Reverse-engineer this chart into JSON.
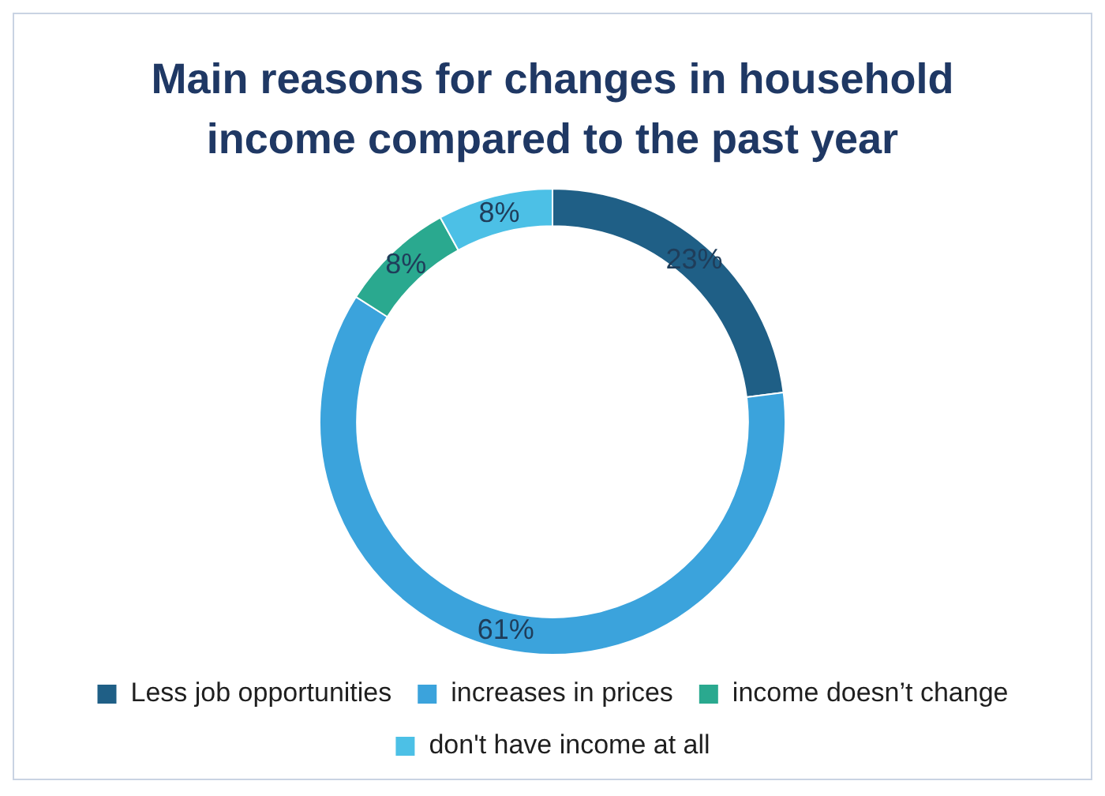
{
  "chart_data": {
    "type": "donut",
    "title": "Main reasons for changes in household income compared to the past year",
    "categories": [
      "Less job opportunities",
      "increases in prices",
      "income doesn’t change",
      "don't have income at all"
    ],
    "values": [
      23,
      61,
      8,
      8
    ],
    "value_labels": [
      "23%",
      "61%",
      "8%",
      "8%"
    ],
    "colors": [
      "#1f5f86",
      "#3ba3dc",
      "#2aa98f",
      "#4cc0e6"
    ],
    "legend": "bottom"
  }
}
